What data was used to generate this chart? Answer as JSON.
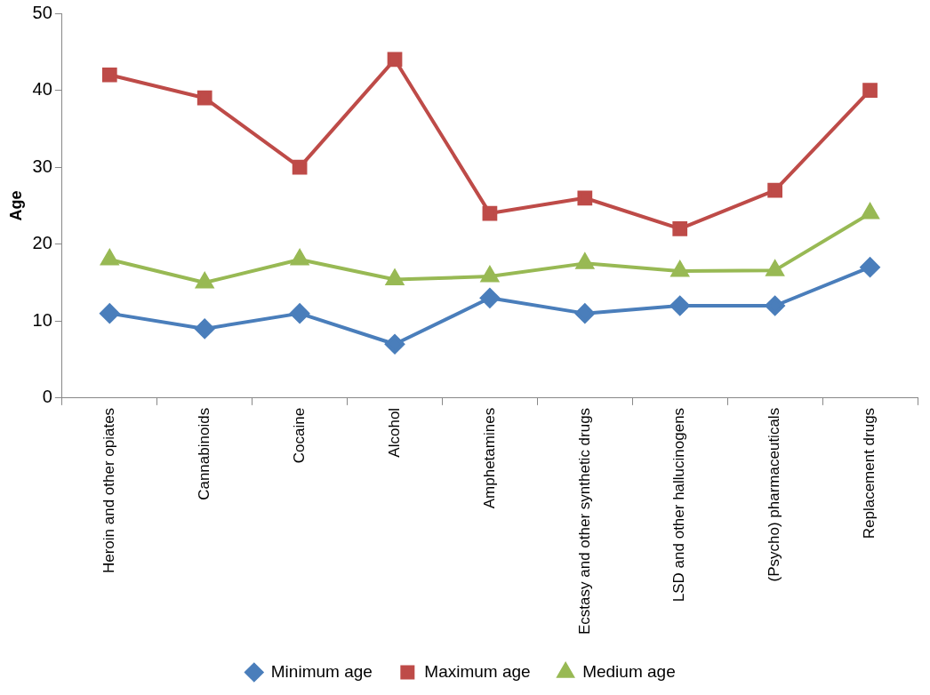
{
  "chart_data": {
    "type": "line",
    "ylabel": "Age",
    "categories": [
      "Heroin and other opiates",
      "Cannabinoids",
      "Cocaine",
      "Alcohol",
      "Amphetamines",
      "Ecstasy and other synthetic drugs",
      "LSD and other hallucinogens",
      "(Psycho) pharmaceuticals",
      "Replacement drugs"
    ],
    "series": [
      {
        "name": "Minimum age",
        "color": "#4a7ebb",
        "marker": "diamond",
        "values": [
          11,
          9,
          11,
          7,
          13,
          11,
          12,
          12,
          17
        ]
      },
      {
        "name": "Maximum age",
        "color": "#be4b48",
        "marker": "square",
        "values": [
          42,
          39,
          30,
          44,
          24,
          26,
          22,
          27,
          40
        ]
      },
      {
        "name": "Medium age",
        "color": "#98b954",
        "marker": "triangle",
        "values": [
          18,
          15,
          18,
          15.4,
          15.8,
          17.5,
          16.5,
          16.6,
          24
        ]
      }
    ],
    "ylim": [
      0,
      50
    ],
    "yticks": [
      0,
      10,
      20,
      30,
      40,
      50
    ],
    "grid": false,
    "legend": "bottom"
  }
}
